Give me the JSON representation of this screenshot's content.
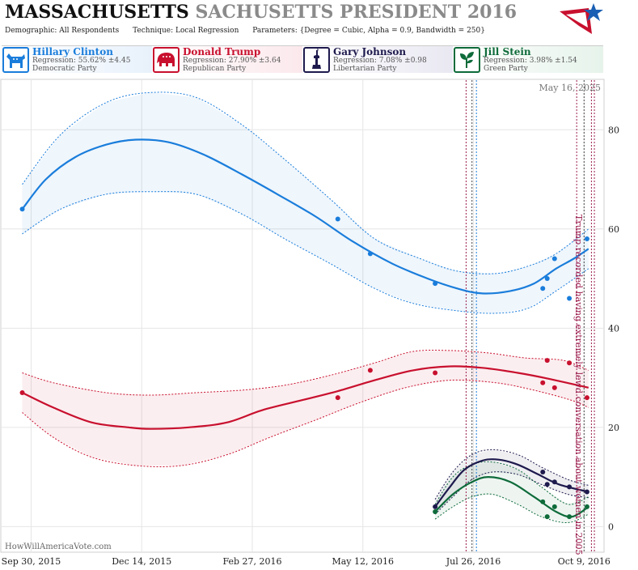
{
  "header": {
    "title_state": "MASSACHUSETTS",
    "title_race": "SACHUSETTS PRESIDENT 2016",
    "demographic": "Demographic: All Respondents",
    "technique": "Technique: Local Regression",
    "parameters": "Parameters: {Degree = Cubic, Alpha = 0.9, Bandwidth = 250}"
  },
  "candidates": [
    {
      "name": "Hillary Clinton",
      "regression": "Regression: 55.62% ±4.45",
      "party": "Democratic Party",
      "color": "#1a7ddb",
      "icon": "donkey-icon"
    },
    {
      "name": "Donald Trump",
      "regression": "Regression: 27.90% ±3.64",
      "party": "Republican Party",
      "color": "#c8102e",
      "icon": "elephant-icon"
    },
    {
      "name": "Gary Johnson",
      "regression": "Regression: 7.08% ±0.98",
      "party": "Libertarian Party",
      "color": "#1e1a4d",
      "icon": "liberty-statue-icon"
    },
    {
      "name": "Jill Stein",
      "regression": "Regression: 3.98% ±1.54",
      "party": "Green Party",
      "color": "#0e6b3a",
      "icon": "leaf-icon"
    }
  ],
  "chart_data": {
    "type": "line",
    "date_label": "May 16, 2025",
    "watermark": "HowWillAmericaVote.com",
    "x_ticks": [
      "Sep 30, 2015",
      "Dec 14, 2015",
      "Feb 27, 2016",
      "May 12, 2016",
      "Jul 26, 2016",
      "Oct 9, 2016"
    ],
    "y_ticks": [
      "0",
      "20",
      "40",
      "60",
      "80"
    ],
    "ylim": [
      -5,
      90
    ],
    "annotation": "Trump recorded having extremely lewd conversation about women in 2005",
    "series": [
      {
        "name": "Hillary Clinton",
        "color": "#1a7ddb",
        "trend": [
          [
            "2015-09-24",
            64
          ],
          [
            "2015-10-10",
            70
          ],
          [
            "2015-10-30",
            74.5
          ],
          [
            "2015-11-20",
            77
          ],
          [
            "2015-12-10",
            78
          ],
          [
            "2016-01-01",
            77.5
          ],
          [
            "2016-01-25",
            75
          ],
          [
            "2016-02-20",
            71
          ],
          [
            "2016-03-15",
            67
          ],
          [
            "2016-04-10",
            62.5
          ],
          [
            "2016-05-05",
            57.5
          ],
          [
            "2016-06-01",
            53
          ],
          [
            "2016-06-25",
            50
          ],
          [
            "2016-07-15",
            48
          ],
          [
            "2016-08-01",
            47
          ],
          [
            "2016-08-20",
            47.5
          ],
          [
            "2016-09-05",
            49
          ],
          [
            "2016-09-20",
            52
          ],
          [
            "2016-10-02",
            54
          ],
          [
            "2016-10-12",
            56
          ]
        ],
        "upper": [
          [
            "2015-09-24",
            69
          ],
          [
            "2015-10-20",
            79
          ],
          [
            "2015-11-20",
            85.5
          ],
          [
            "2015-12-20",
            87.5
          ],
          [
            "2016-01-20",
            86.5
          ],
          [
            "2016-02-20",
            81
          ],
          [
            "2016-03-20",
            74
          ],
          [
            "2016-04-20",
            66
          ],
          [
            "2016-05-20",
            58
          ],
          [
            "2016-06-20",
            54
          ],
          [
            "2016-07-15",
            51.5
          ],
          [
            "2016-08-10",
            51
          ],
          [
            "2016-09-01",
            52.5
          ],
          [
            "2016-09-20",
            55
          ],
          [
            "2016-10-12",
            60
          ]
        ],
        "lower": [
          [
            "2015-09-24",
            59
          ],
          [
            "2015-10-20",
            64
          ],
          [
            "2015-11-20",
            67
          ],
          [
            "2015-12-20",
            67.5
          ],
          [
            "2016-01-20",
            67
          ],
          [
            "2016-02-20",
            63
          ],
          [
            "2016-03-20",
            58
          ],
          [
            "2016-04-20",
            53
          ],
          [
            "2016-05-20",
            48
          ],
          [
            "2016-06-15",
            45
          ],
          [
            "2016-07-15",
            43.5
          ],
          [
            "2016-08-10",
            43
          ],
          [
            "2016-09-01",
            44
          ],
          [
            "2016-09-20",
            47.5
          ],
          [
            "2016-10-12",
            52
          ]
        ],
        "points": [
          [
            "2015-09-24",
            64
          ],
          [
            "2016-04-25",
            62
          ],
          [
            "2016-05-17",
            55
          ],
          [
            "2016-06-30",
            49
          ],
          [
            "2016-09-11",
            48
          ],
          [
            "2016-09-14",
            50
          ],
          [
            "2016-09-19",
            54
          ],
          [
            "2016-09-29",
            46
          ],
          [
            "2016-10-11",
            58
          ]
        ]
      },
      {
        "name": "Donald Trump",
        "color": "#c8102e",
        "trend": [
          [
            "2015-09-24",
            27
          ],
          [
            "2015-10-15",
            24
          ],
          [
            "2015-11-10",
            21
          ],
          [
            "2015-12-05",
            20
          ],
          [
            "2015-12-20",
            19.7
          ],
          [
            "2016-01-15",
            20
          ],
          [
            "2016-02-10",
            21
          ],
          [
            "2016-03-05",
            23.5
          ],
          [
            "2016-04-01",
            25.5
          ],
          [
            "2016-04-25",
            27.3
          ],
          [
            "2016-05-20",
            29.5
          ],
          [
            "2016-06-15",
            31.5
          ],
          [
            "2016-07-10",
            32.3
          ],
          [
            "2016-08-01",
            32
          ],
          [
            "2016-08-25",
            31
          ],
          [
            "2016-09-15",
            29.8
          ],
          [
            "2016-10-12",
            28
          ]
        ],
        "upper": [
          [
            "2015-09-24",
            31
          ],
          [
            "2015-10-15",
            29
          ],
          [
            "2015-11-20",
            27
          ],
          [
            "2015-12-20",
            26.5
          ],
          [
            "2016-01-20",
            27
          ],
          [
            "2016-02-20",
            27.5
          ],
          [
            "2016-03-20",
            28.5
          ],
          [
            "2016-04-20",
            30.5
          ],
          [
            "2016-05-20",
            33
          ],
          [
            "2016-06-15",
            35.3
          ],
          [
            "2016-07-10",
            35.5
          ],
          [
            "2016-08-05",
            35
          ],
          [
            "2016-08-30",
            34
          ],
          [
            "2016-09-25",
            33.5
          ],
          [
            "2016-10-12",
            31.5
          ]
        ],
        "lower": [
          [
            "2015-09-24",
            23
          ],
          [
            "2015-10-15",
            18
          ],
          [
            "2015-11-10",
            14
          ],
          [
            "2015-12-10",
            12.3
          ],
          [
            "2016-01-10",
            12.3
          ],
          [
            "2016-02-10",
            14.5
          ],
          [
            "2016-03-10",
            18
          ],
          [
            "2016-04-10",
            21.5
          ],
          [
            "2016-05-10",
            25
          ],
          [
            "2016-06-10",
            28
          ],
          [
            "2016-07-10",
            29.5
          ],
          [
            "2016-08-10",
            29
          ],
          [
            "2016-09-05",
            27.5
          ],
          [
            "2016-09-30",
            25.5
          ],
          [
            "2016-10-12",
            24
          ]
        ],
        "points": [
          [
            "2015-09-24",
            27
          ],
          [
            "2016-04-25",
            26
          ],
          [
            "2016-05-17",
            31.5
          ],
          [
            "2016-06-30",
            31
          ],
          [
            "2016-09-11",
            29
          ],
          [
            "2016-09-14",
            33.5
          ],
          [
            "2016-09-19",
            28
          ],
          [
            "2016-09-29",
            33
          ],
          [
            "2016-10-11",
            26
          ]
        ]
      },
      {
        "name": "Gary Johnson",
        "color": "#1e1a4d",
        "trend": [
          [
            "2016-06-30",
            4
          ],
          [
            "2016-07-10",
            8
          ],
          [
            "2016-07-20",
            11.5
          ],
          [
            "2016-08-01",
            13.3
          ],
          [
            "2016-08-12",
            13.5
          ],
          [
            "2016-08-25",
            12.5
          ],
          [
            "2016-09-08",
            10.5
          ],
          [
            "2016-09-22",
            8.5
          ],
          [
            "2016-10-12",
            7
          ]
        ],
        "upper": [
          [
            "2016-06-30",
            5.5
          ],
          [
            "2016-07-12",
            11
          ],
          [
            "2016-07-25",
            14.5
          ],
          [
            "2016-08-08",
            15.5
          ],
          [
            "2016-08-25",
            14.5
          ],
          [
            "2016-09-10",
            12
          ],
          [
            "2016-09-28",
            9.5
          ],
          [
            "2016-10-12",
            8.3
          ]
        ],
        "lower": [
          [
            "2016-06-30",
            2.5
          ],
          [
            "2016-07-12",
            6
          ],
          [
            "2016-07-25",
            9.5
          ],
          [
            "2016-08-08",
            11
          ],
          [
            "2016-08-25",
            10.5
          ],
          [
            "2016-09-10",
            8.5
          ],
          [
            "2016-09-28",
            6.5
          ],
          [
            "2016-10-12",
            5.8
          ]
        ],
        "points": [
          [
            "2016-06-30",
            4
          ],
          [
            "2016-09-11",
            11
          ],
          [
            "2016-09-14",
            8.5
          ],
          [
            "2016-09-19",
            9
          ],
          [
            "2016-09-29",
            8
          ],
          [
            "2016-10-11",
            7
          ]
        ]
      },
      {
        "name": "Jill Stein",
        "color": "#0e6b3a",
        "trend": [
          [
            "2016-06-30",
            3
          ],
          [
            "2016-07-12",
            6.5
          ],
          [
            "2016-07-25",
            9
          ],
          [
            "2016-08-05",
            10
          ],
          [
            "2016-08-20",
            9
          ],
          [
            "2016-09-05",
            6
          ],
          [
            "2016-09-20",
            3
          ],
          [
            "2016-10-01",
            2
          ],
          [
            "2016-10-12",
            4
          ]
        ],
        "upper": [
          [
            "2016-06-30",
            4.5
          ],
          [
            "2016-07-12",
            10
          ],
          [
            "2016-07-25",
            12.5
          ],
          [
            "2016-08-08",
            13
          ],
          [
            "2016-08-25",
            11.5
          ],
          [
            "2016-09-10",
            8
          ],
          [
            "2016-09-28",
            4.5
          ],
          [
            "2016-10-12",
            6
          ]
        ],
        "lower": [
          [
            "2016-06-30",
            1.5
          ],
          [
            "2016-07-12",
            4
          ],
          [
            "2016-07-25",
            6
          ],
          [
            "2016-08-08",
            6.5
          ],
          [
            "2016-08-25",
            4.5
          ],
          [
            "2016-09-10",
            2
          ],
          [
            "2016-09-28",
            0.8
          ],
          [
            "2016-10-12",
            2.5
          ]
        ],
        "points": [
          [
            "2016-06-30",
            3
          ],
          [
            "2016-09-11",
            5
          ],
          [
            "2016-09-14",
            2
          ],
          [
            "2016-09-19",
            4
          ],
          [
            "2016-09-29",
            2
          ],
          [
            "2016-10-11",
            4
          ]
        ]
      }
    ],
    "event_lines": [
      {
        "date": "2016-07-21",
        "color": "#9b1c4d"
      },
      {
        "date": "2016-07-25",
        "color": "#444444"
      },
      {
        "date": "2016-07-28",
        "color": "#1a7ddb"
      },
      {
        "date": "2016-10-04",
        "color": "#9b1c4d"
      },
      {
        "date": "2016-10-09",
        "color": "#444444"
      },
      {
        "date": "2016-10-14",
        "color": "#9b1c4d"
      },
      {
        "date": "2016-10-16",
        "color": "#9b1c4d"
      }
    ]
  }
}
